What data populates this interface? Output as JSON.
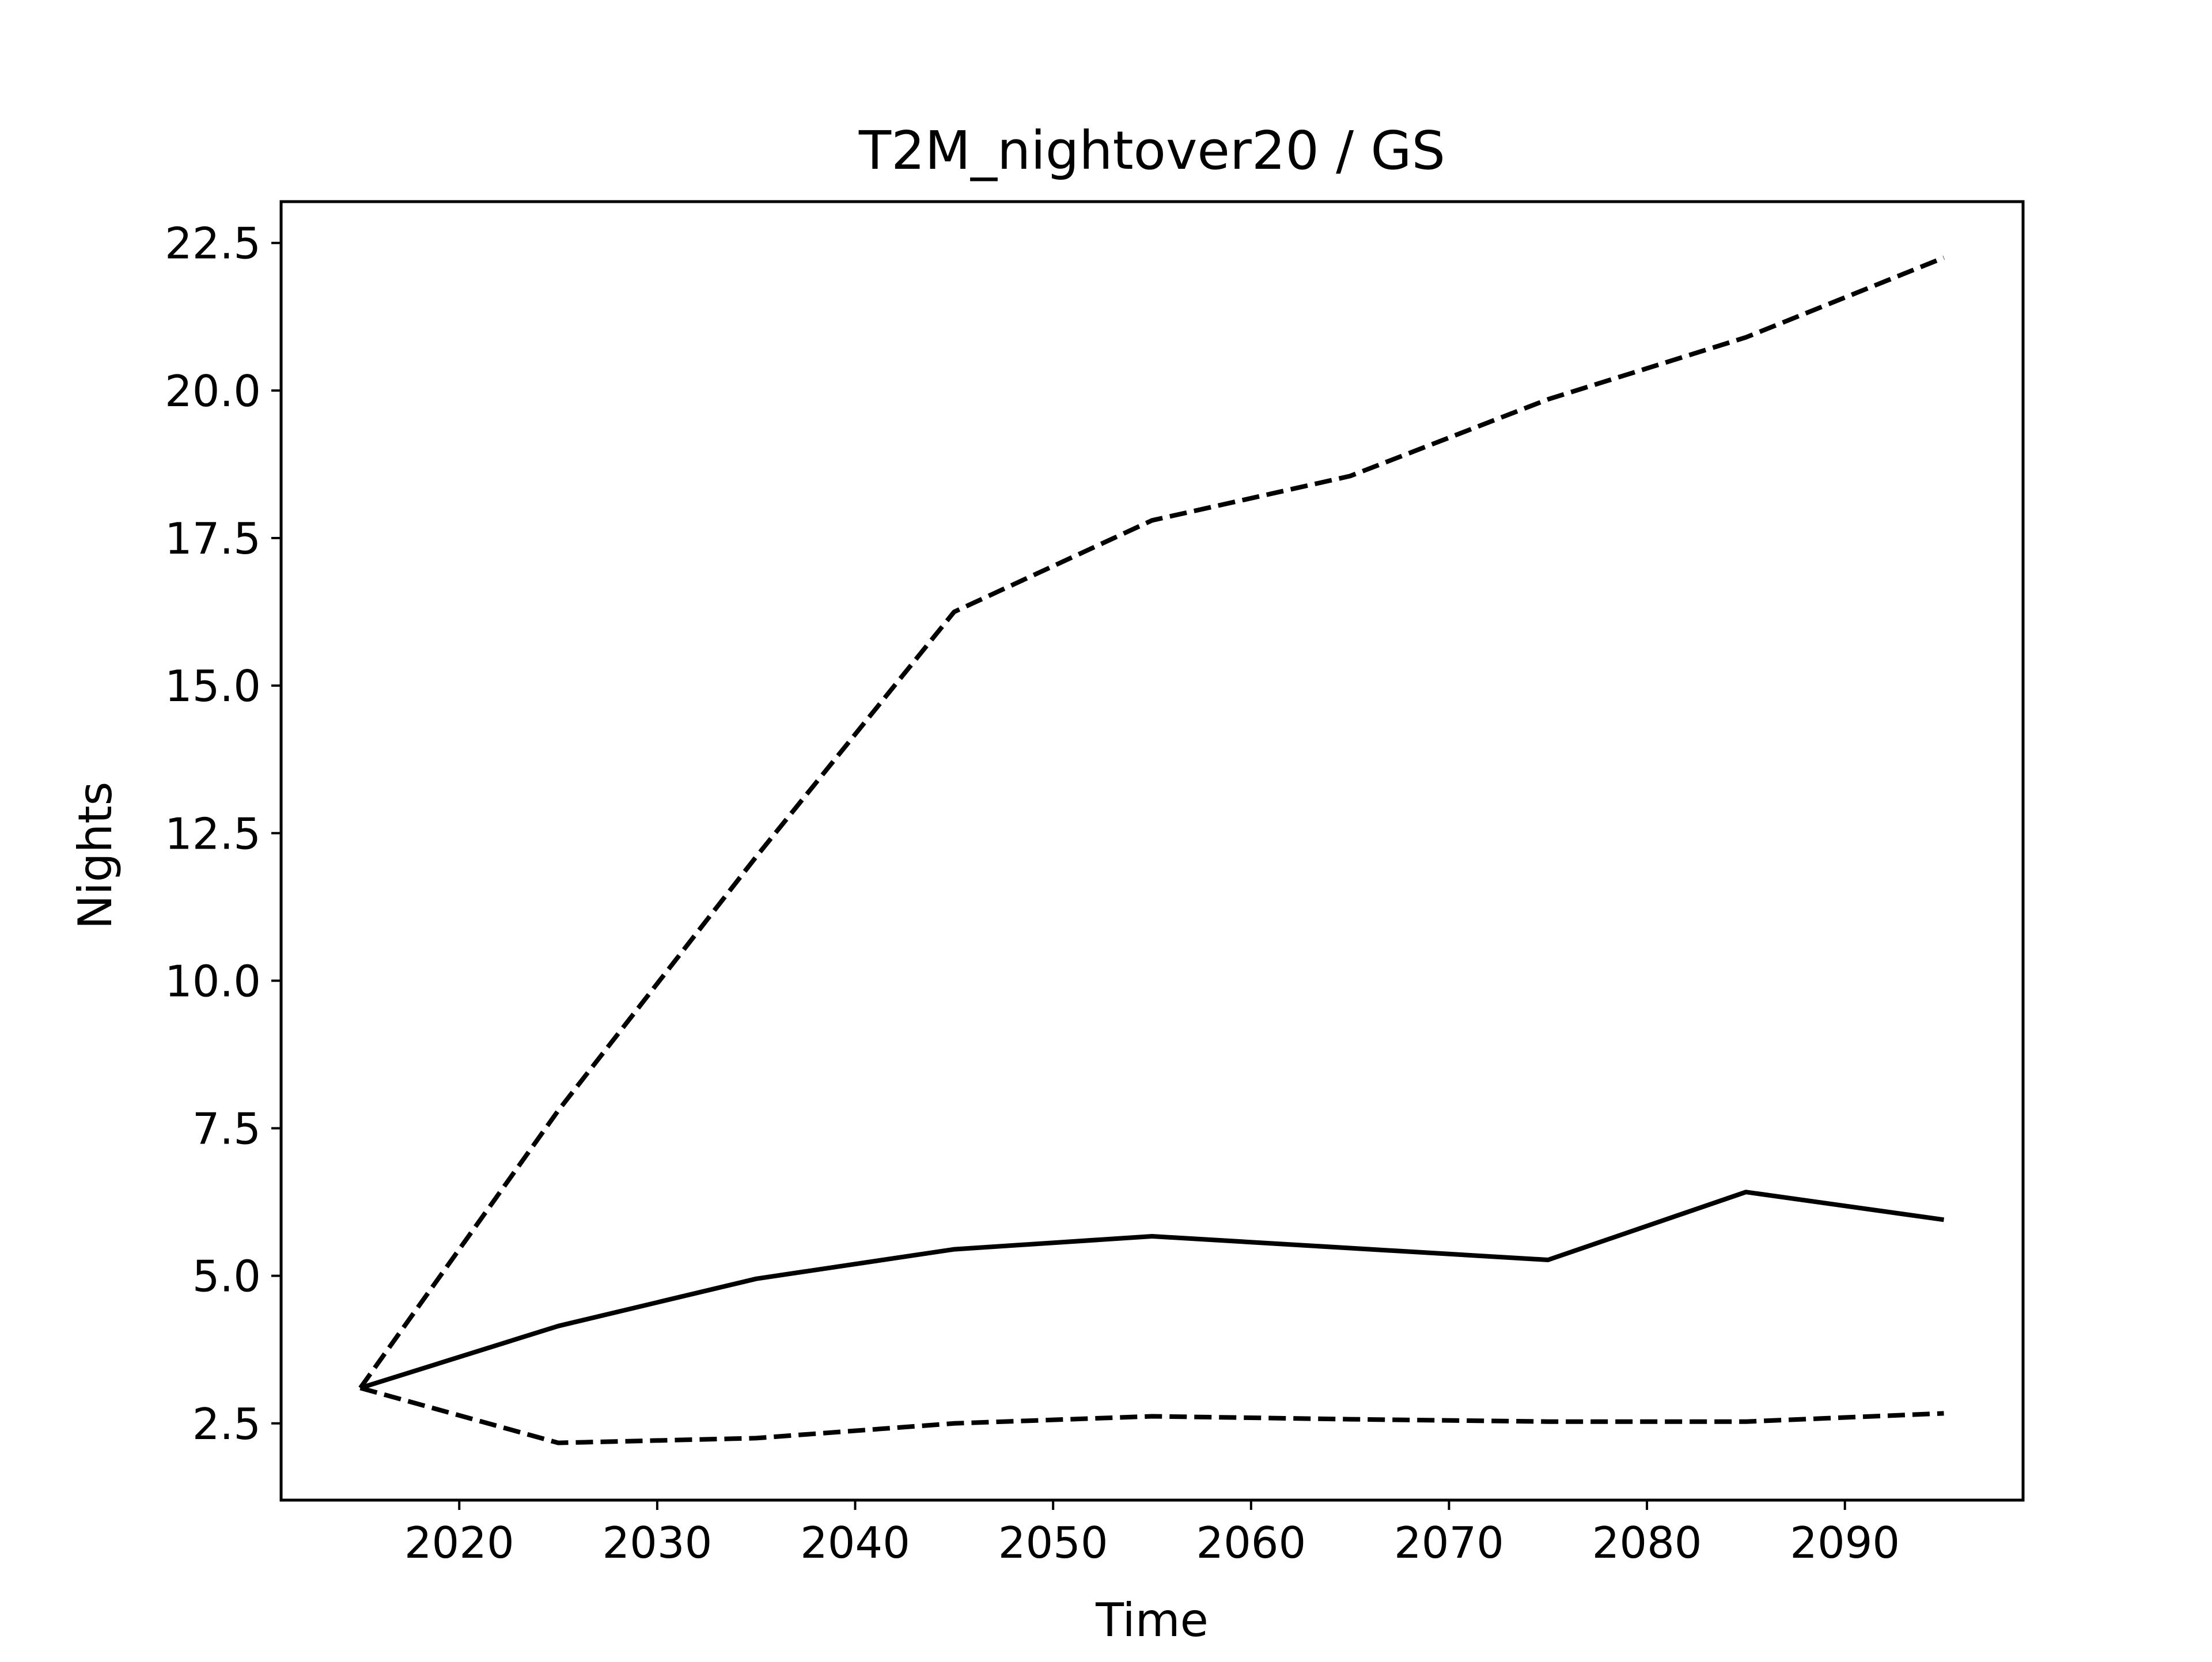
{
  "chart_data": {
    "type": "line",
    "title": "T2M_nightover20 / GS",
    "xlabel": "Time",
    "ylabel": "Nights",
    "xlim": [
      2011,
      2099
    ],
    "ylim": [
      1.2,
      23.2
    ],
    "xticks": [
      2020,
      2030,
      2040,
      2050,
      2060,
      2070,
      2080,
      2090
    ],
    "yticks": [
      2.5,
      5.0,
      7.5,
      10.0,
      12.5,
      15.0,
      17.5,
      20.0,
      22.5
    ],
    "ytick_labels": [
      "2.5",
      "5.0",
      "7.5",
      "10.0",
      "12.5",
      "15.0",
      "17.5",
      "20.0",
      "22.5"
    ],
    "grid": false,
    "legend": "none",
    "series": [
      {
        "style": "solid",
        "color": "#000000",
        "x": [
          2015,
          2025,
          2035,
          2045,
          2055,
          2065,
          2075,
          2085,
          2095
        ],
        "y": [
          3.1,
          4.15,
          4.95,
          5.45,
          5.67,
          5.47,
          5.27,
          6.42,
          5.95
        ]
      },
      {
        "style": "dashed",
        "color": "#000000",
        "x": [
          2015,
          2025,
          2035,
          2045,
          2055,
          2065,
          2075,
          2085,
          2095
        ],
        "y": [
          3.1,
          7.8,
          12.1,
          16.25,
          17.8,
          18.55,
          19.85,
          20.9,
          22.25
        ]
      },
      {
        "style": "dashed",
        "color": "#000000",
        "x": [
          2015,
          2025,
          2035,
          2045,
          2055,
          2065,
          2075,
          2085,
          2095
        ],
        "y": [
          3.1,
          2.17,
          2.25,
          2.5,
          2.62,
          2.57,
          2.53,
          2.53,
          2.67
        ]
      }
    ]
  }
}
